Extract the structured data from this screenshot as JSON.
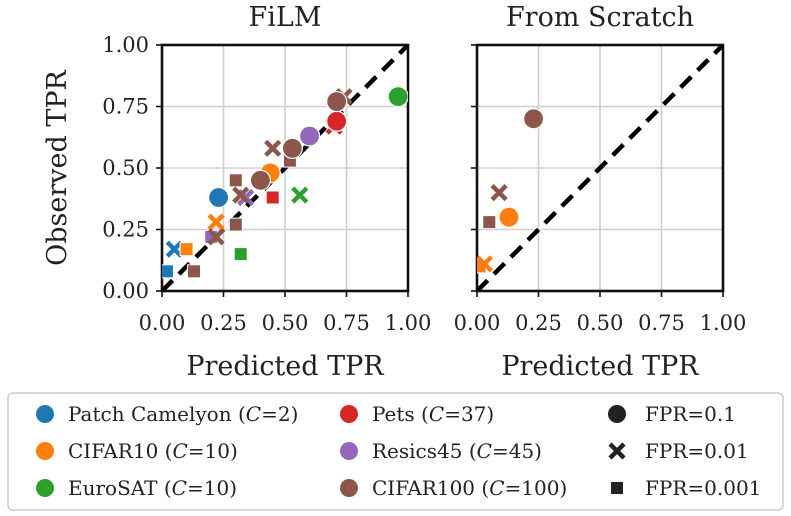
{
  "chart_data": {
    "type": "scatter",
    "series_styles": [
      {
        "key": "patch",
        "color": "#1f77b4"
      },
      {
        "key": "cifar10",
        "color": "#ff7f0e"
      },
      {
        "key": "eurosat",
        "color": "#2ca02c"
      },
      {
        "key": "pets",
        "color": "#d62728"
      },
      {
        "key": "resics",
        "color": "#9467bd"
      },
      {
        "key": "cifar100",
        "color": "#8c564b"
      }
    ],
    "legend": {
      "placement": "bottom",
      "datasets": [
        {
          "key": "patch",
          "name": "Patch Camelyon",
          "c_value": "2"
        },
        {
          "key": "cifar10",
          "name": "CIFAR10",
          "c_value": "10"
        },
        {
          "key": "eurosat",
          "name": "EuroSAT",
          "c_value": "10"
        },
        {
          "key": "pets",
          "name": "Pets",
          "c_value": "37"
        },
        {
          "key": "resics",
          "name": "Resics45",
          "c_value": "45"
        },
        {
          "key": "cifar100",
          "name": "CIFAR100",
          "c_value": "100"
        }
      ],
      "markers": [
        {
          "shape": "circle",
          "label": "FPR=0.1"
        },
        {
          "shape": "cross",
          "label": "FPR=0.01"
        },
        {
          "shape": "square",
          "label": "FPR=0.001"
        }
      ]
    },
    "c_symbol": "C",
    "xlim": [
      0,
      1
    ],
    "ylim": [
      0,
      1
    ],
    "grid": true,
    "diagonal": true,
    "ticks": [
      "0.00",
      "0.25",
      "0.50",
      "0.75",
      "1.00"
    ],
    "panels": [
      {
        "title": "FiLM",
        "xlabel": "Predicted TPR",
        "ylabel": "Observed TPR",
        "points": [
          {
            "series": "patch",
            "marker": "square",
            "x": 0.02,
            "y": 0.08
          },
          {
            "series": "patch",
            "marker": "cross",
            "x": 0.05,
            "y": 0.17
          },
          {
            "series": "patch",
            "marker": "circle",
            "x": 0.23,
            "y": 0.38
          },
          {
            "series": "cifar10",
            "marker": "square",
            "x": 0.1,
            "y": 0.17
          },
          {
            "series": "cifar10",
            "marker": "cross",
            "x": 0.22,
            "y": 0.28
          },
          {
            "series": "cifar10",
            "marker": "circle",
            "x": 0.44,
            "y": 0.48
          },
          {
            "series": "eurosat",
            "marker": "square",
            "x": 0.32,
            "y": 0.15
          },
          {
            "series": "eurosat",
            "marker": "cross",
            "x": 0.56,
            "y": 0.39
          },
          {
            "series": "eurosat",
            "marker": "circle",
            "x": 0.96,
            "y": 0.79
          },
          {
            "series": "pets",
            "marker": "square",
            "x": 0.45,
            "y": 0.38
          },
          {
            "series": "pets",
            "marker": "cross",
            "x": 0.7,
            "y": 0.67
          },
          {
            "series": "pets",
            "marker": "circle",
            "x": 0.71,
            "y": 0.69
          },
          {
            "series": "resics",
            "marker": "square",
            "x": 0.2,
            "y": 0.22
          },
          {
            "series": "resics",
            "marker": "cross",
            "x": 0.34,
            "y": 0.38
          },
          {
            "series": "resics",
            "marker": "circle",
            "x": 0.6,
            "y": 0.63
          },
          {
            "series": "cifar100",
            "marker": "square",
            "x": 0.13,
            "y": 0.08
          },
          {
            "series": "cifar100",
            "marker": "square",
            "x": 0.3,
            "y": 0.27
          },
          {
            "series": "cifar100",
            "marker": "square",
            "x": 0.3,
            "y": 0.45
          },
          {
            "series": "cifar100",
            "marker": "square",
            "x": 0.52,
            "y": 0.53
          },
          {
            "series": "cifar100",
            "marker": "cross",
            "x": 0.22,
            "y": 0.22
          },
          {
            "series": "cifar100",
            "marker": "cross",
            "x": 0.32,
            "y": 0.39
          },
          {
            "series": "cifar100",
            "marker": "cross",
            "x": 0.45,
            "y": 0.58
          },
          {
            "series": "cifar100",
            "marker": "cross",
            "x": 0.74,
            "y": 0.79
          },
          {
            "series": "cifar100",
            "marker": "circle",
            "x": 0.4,
            "y": 0.45
          },
          {
            "series": "cifar100",
            "marker": "circle",
            "x": 0.53,
            "y": 0.58
          },
          {
            "series": "cifar100",
            "marker": "circle",
            "x": 0.71,
            "y": 0.77
          }
        ]
      },
      {
        "title": "From Scratch",
        "xlabel": "Predicted TPR",
        "ylabel": "",
        "points": [
          {
            "series": "cifar10",
            "marker": "square",
            "x": 0.01,
            "y": 0.1
          },
          {
            "series": "cifar10",
            "marker": "cross",
            "x": 0.03,
            "y": 0.11
          },
          {
            "series": "cifar10",
            "marker": "circle",
            "x": 0.13,
            "y": 0.3
          },
          {
            "series": "cifar100",
            "marker": "square",
            "x": 0.05,
            "y": 0.28
          },
          {
            "series": "cifar100",
            "marker": "cross",
            "x": 0.09,
            "y": 0.4
          },
          {
            "series": "cifar100",
            "marker": "circle",
            "x": 0.23,
            "y": 0.7
          }
        ]
      }
    ]
  }
}
